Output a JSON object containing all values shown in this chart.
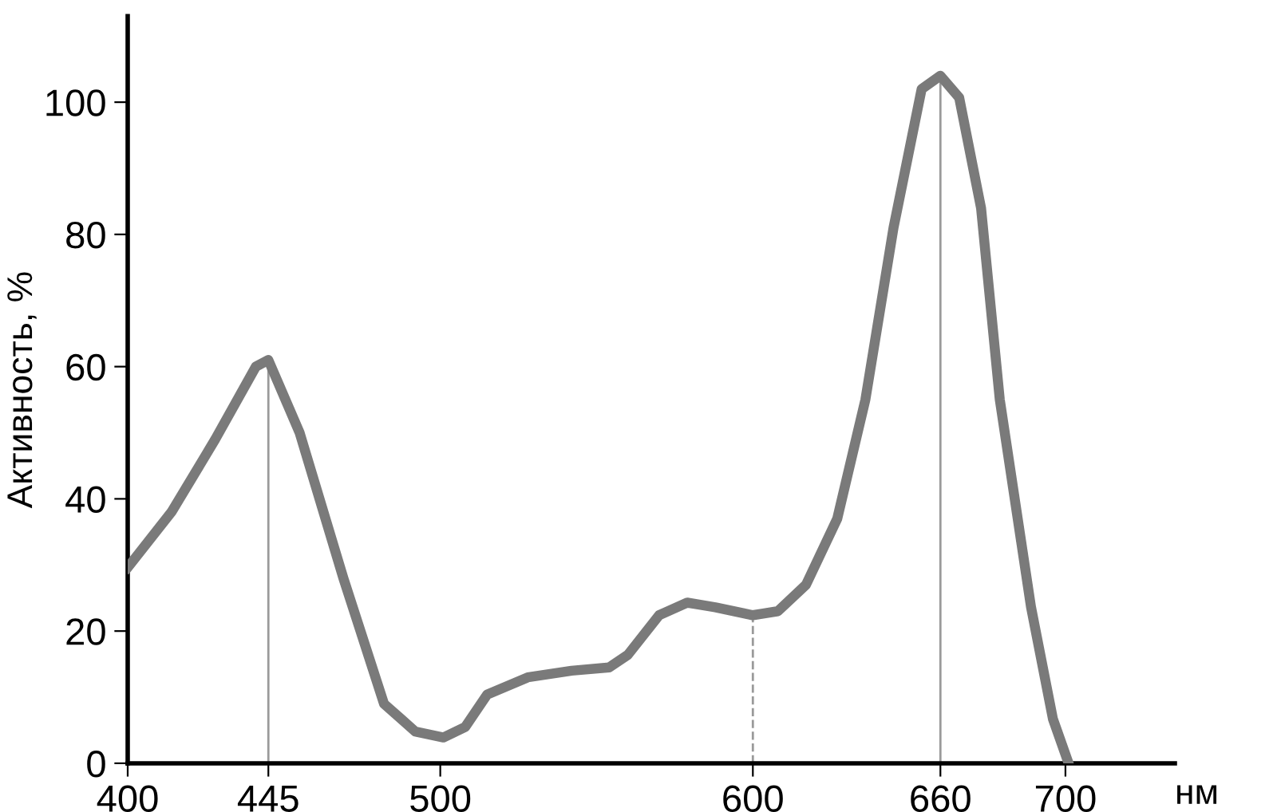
{
  "chart_data": {
    "type": "line",
    "ylabel": "Активность, %",
    "xlabel": "нм",
    "xlim": [
      400,
      735
    ],
    "ylim": [
      0,
      113
    ],
    "xticks": [
      400,
      445,
      500,
      600,
      660,
      700
    ],
    "yticks": [
      0,
      20,
      40,
      60,
      80,
      100
    ],
    "grid": false,
    "legend": false,
    "marker": "none",
    "line_style": "solid",
    "series": [
      {
        "color": "#7a7a7a",
        "x": [
          400,
          414,
          428,
          441,
          445,
          455,
          469,
          482,
          492,
          501,
          508,
          515,
          528,
          542,
          554,
          560,
          570,
          579,
          588,
          600,
          608,
          617,
          627,
          636,
          645,
          654,
          660,
          666,
          673,
          679,
          689,
          696,
          701
        ],
        "values": [
          29.6,
          38,
          49,
          60,
          61,
          50,
          28,
          9,
          4.8,
          3.9,
          5.5,
          10.4,
          13,
          14,
          14.5,
          16.4,
          22.4,
          24.3,
          23.6,
          22.4,
          23,
          27,
          37,
          55,
          81,
          102,
          104,
          100.7,
          84,
          55,
          23.6,
          6.7,
          0
        ]
      }
    ],
    "ref_lines": [
      {
        "axis": "x",
        "value": 445,
        "color": "#9a9a9a",
        "line_style": "solid"
      },
      {
        "axis": "x",
        "value": 600,
        "color": "#9a9a9a",
        "line_style": "dashed"
      },
      {
        "axis": "x",
        "value": 660,
        "color": "#9a9a9a",
        "line_style": "solid"
      }
    ]
  }
}
